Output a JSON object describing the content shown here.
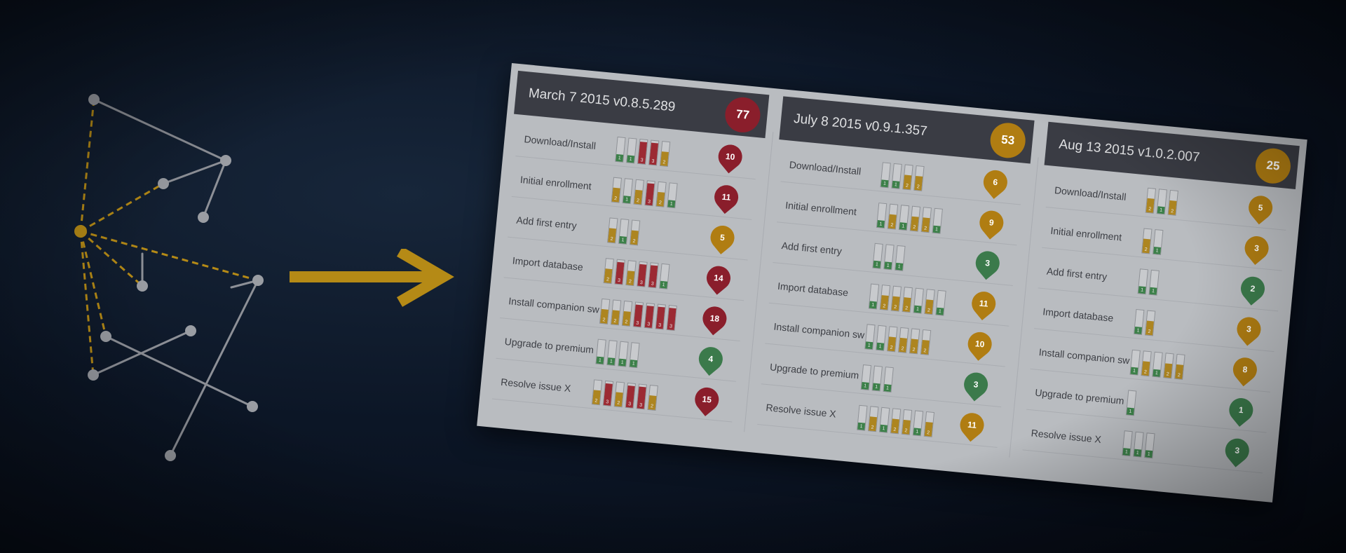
{
  "colors": {
    "gold": "#b58a16",
    "gray_line": "#8d9097",
    "red": "#8a1e2b",
    "green": "#3b7a4b",
    "orange": "#b07d12",
    "bar_red": "#9c2a33",
    "bar_gold": "#ad8520",
    "bar_green": "#3c8049"
  },
  "columns": [
    {
      "title": "March 7 2015 v0.8.5.289",
      "score": 77,
      "score_color": "red",
      "rows": [
        {
          "label": "Download/Install",
          "count": 10,
          "pin_color": "red",
          "bars": [
            {
              "c": "green",
              "v": "1",
              "h": 0.3
            },
            {
              "c": "green",
              "v": "1",
              "h": 0.3
            },
            {
              "c": "red",
              "v": "3",
              "h": 0.9
            },
            {
              "c": "red",
              "v": "3",
              "h": 0.9
            },
            {
              "c": "gold",
              "v": "2",
              "h": 0.6
            }
          ]
        },
        {
          "label": "Initial enrollment",
          "count": 11,
          "pin_color": "red",
          "bars": [
            {
              "c": "gold",
              "v": "2",
              "h": 0.6
            },
            {
              "c": "green",
              "v": "1",
              "h": 0.3
            },
            {
              "c": "gold",
              "v": "2",
              "h": 0.6
            },
            {
              "c": "red",
              "v": "3",
              "h": 0.9
            },
            {
              "c": "gold",
              "v": "2",
              "h": 0.6
            },
            {
              "c": "green",
              "v": "1",
              "h": 0.3
            }
          ]
        },
        {
          "label": "Add first entry",
          "count": 5,
          "pin_color": "orange",
          "bars": [
            {
              "c": "gold",
              "v": "2",
              "h": 0.6
            },
            {
              "c": "green",
              "v": "1",
              "h": 0.3
            },
            {
              "c": "gold",
              "v": "2",
              "h": 0.6
            }
          ]
        },
        {
          "label": "Import database",
          "count": 14,
          "pin_color": "red",
          "bars": [
            {
              "c": "gold",
              "v": "2",
              "h": 0.6
            },
            {
              "c": "red",
              "v": "3",
              "h": 0.9
            },
            {
              "c": "gold",
              "v": "2",
              "h": 0.6
            },
            {
              "c": "red",
              "v": "3",
              "h": 0.9
            },
            {
              "c": "red",
              "v": "3",
              "h": 0.9
            },
            {
              "c": "green",
              "v": "1",
              "h": 0.3
            }
          ]
        },
        {
          "label": "Install companion sw",
          "count": 18,
          "pin_color": "red",
          "bars": [
            {
              "c": "gold",
              "v": "2",
              "h": 0.6
            },
            {
              "c": "gold",
              "v": "2",
              "h": 0.6
            },
            {
              "c": "gold",
              "v": "2",
              "h": 0.6
            },
            {
              "c": "red",
              "v": "3",
              "h": 0.9
            },
            {
              "c": "red",
              "v": "3",
              "h": 0.9
            },
            {
              "c": "red",
              "v": "3",
              "h": 0.9
            },
            {
              "c": "red",
              "v": "3",
              "h": 0.9
            }
          ]
        },
        {
          "label": "Upgrade to premium",
          "count": 4,
          "pin_color": "green",
          "bars": [
            {
              "c": "green",
              "v": "1",
              "h": 0.3
            },
            {
              "c": "green",
              "v": "1",
              "h": 0.3
            },
            {
              "c": "green",
              "v": "1",
              "h": 0.3
            },
            {
              "c": "green",
              "v": "1",
              "h": 0.3
            }
          ]
        },
        {
          "label": "Resolve issue X",
          "count": 15,
          "pin_color": "red",
          "bars": [
            {
              "c": "gold",
              "v": "2",
              "h": 0.6
            },
            {
              "c": "red",
              "v": "3",
              "h": 0.9
            },
            {
              "c": "gold",
              "v": "2",
              "h": 0.6
            },
            {
              "c": "red",
              "v": "3",
              "h": 0.9
            },
            {
              "c": "red",
              "v": "3",
              "h": 0.9
            },
            {
              "c": "gold",
              "v": "2",
              "h": 0.6
            }
          ]
        }
      ]
    },
    {
      "title": "July 8 2015 v0.9.1.357",
      "score": 53,
      "score_color": "orange",
      "rows": [
        {
          "label": "Download/Install",
          "count": 6,
          "pin_color": "orange",
          "bars": [
            {
              "c": "green",
              "v": "1",
              "h": 0.3
            },
            {
              "c": "green",
              "v": "1",
              "h": 0.3
            },
            {
              "c": "gold",
              "v": "2",
              "h": 0.6
            },
            {
              "c": "gold",
              "v": "2",
              "h": 0.6
            }
          ]
        },
        {
          "label": "Initial enrollment",
          "count": 9,
          "pin_color": "orange",
          "bars": [
            {
              "c": "green",
              "v": "1",
              "h": 0.3
            },
            {
              "c": "gold",
              "v": "2",
              "h": 0.6
            },
            {
              "c": "green",
              "v": "1",
              "h": 0.3
            },
            {
              "c": "gold",
              "v": "2",
              "h": 0.6
            },
            {
              "c": "gold",
              "v": "2",
              "h": 0.6
            },
            {
              "c": "green",
              "v": "1",
              "h": 0.3
            }
          ]
        },
        {
          "label": "Add first entry",
          "count": 3,
          "pin_color": "green",
          "bars": [
            {
              "c": "green",
              "v": "1",
              "h": 0.3
            },
            {
              "c": "green",
              "v": "1",
              "h": 0.3
            },
            {
              "c": "green",
              "v": "1",
              "h": 0.3
            }
          ]
        },
        {
          "label": "Import database",
          "count": 11,
          "pin_color": "orange",
          "bars": [
            {
              "c": "green",
              "v": "1",
              "h": 0.3
            },
            {
              "c": "gold",
              "v": "2",
              "h": 0.6
            },
            {
              "c": "gold",
              "v": "2",
              "h": 0.6
            },
            {
              "c": "gold",
              "v": "2",
              "h": 0.6
            },
            {
              "c": "green",
              "v": "1",
              "h": 0.3
            },
            {
              "c": "gold",
              "v": "2",
              "h": 0.6
            },
            {
              "c": "green",
              "v": "1",
              "h": 0.3
            }
          ]
        },
        {
          "label": "Install companion sw",
          "count": 10,
          "pin_color": "orange",
          "bars": [
            {
              "c": "green",
              "v": "1",
              "h": 0.3
            },
            {
              "c": "green",
              "v": "1",
              "h": 0.3
            },
            {
              "c": "gold",
              "v": "2",
              "h": 0.6
            },
            {
              "c": "gold",
              "v": "2",
              "h": 0.6
            },
            {
              "c": "gold",
              "v": "2",
              "h": 0.6
            },
            {
              "c": "gold",
              "v": "2",
              "h": 0.6
            }
          ]
        },
        {
          "label": "Upgrade to premium",
          "count": 3,
          "pin_color": "green",
          "bars": [
            {
              "c": "green",
              "v": "1",
              "h": 0.3
            },
            {
              "c": "green",
              "v": "1",
              "h": 0.3
            },
            {
              "c": "green",
              "v": "1",
              "h": 0.3
            }
          ]
        },
        {
          "label": "Resolve issue X",
          "count": 11,
          "pin_color": "orange",
          "bars": [
            {
              "c": "green",
              "v": "1",
              "h": 0.3
            },
            {
              "c": "gold",
              "v": "2",
              "h": 0.6
            },
            {
              "c": "green",
              "v": "1",
              "h": 0.3
            },
            {
              "c": "gold",
              "v": "2",
              "h": 0.6
            },
            {
              "c": "gold",
              "v": "2",
              "h": 0.6
            },
            {
              "c": "green",
              "v": "1",
              "h": 0.3
            },
            {
              "c": "gold",
              "v": "2",
              "h": 0.6
            }
          ]
        }
      ]
    },
    {
      "title": "Aug 13 2015  v1.0.2.007",
      "score": 25,
      "score_color": "orange",
      "rows": [
        {
          "label": "Download/Install",
          "count": 5,
          "pin_color": "orange",
          "bars": [
            {
              "c": "gold",
              "v": "2",
              "h": 0.6
            },
            {
              "c": "green",
              "v": "1",
              "h": 0.3
            },
            {
              "c": "gold",
              "v": "2",
              "h": 0.6
            }
          ]
        },
        {
          "label": "Initial enrollment",
          "count": 3,
          "pin_color": "orange",
          "bars": [
            {
              "c": "gold",
              "v": "2",
              "h": 0.6
            },
            {
              "c": "green",
              "v": "1",
              "h": 0.3
            }
          ]
        },
        {
          "label": "Add first entry",
          "count": 2,
          "pin_color": "green",
          "bars": [
            {
              "c": "green",
              "v": "1",
              "h": 0.3
            },
            {
              "c": "green",
              "v": "1",
              "h": 0.3
            }
          ]
        },
        {
          "label": "Import database",
          "count": 3,
          "pin_color": "orange",
          "bars": [
            {
              "c": "green",
              "v": "1",
              "h": 0.3
            },
            {
              "c": "gold",
              "v": "2",
              "h": 0.6
            }
          ]
        },
        {
          "label": "Install companion sw",
          "count": 8,
          "pin_color": "orange",
          "bars": [
            {
              "c": "green",
              "v": "1",
              "h": 0.3
            },
            {
              "c": "gold",
              "v": "2",
              "h": 0.6
            },
            {
              "c": "green",
              "v": "1",
              "h": 0.3
            },
            {
              "c": "gold",
              "v": "2",
              "h": 0.6
            },
            {
              "c": "gold",
              "v": "2",
              "h": 0.6
            }
          ]
        },
        {
          "label": "Upgrade to premium",
          "count": 1,
          "pin_color": "green",
          "bars": [
            {
              "c": "green",
              "v": "1",
              "h": 0.3
            }
          ]
        },
        {
          "label": "Resolve issue X",
          "count": 3,
          "pin_color": "green",
          "bars": [
            {
              "c": "green",
              "v": "1",
              "h": 0.3
            },
            {
              "c": "green",
              "v": "1",
              "h": 0.3
            },
            {
              "c": "green",
              "v": "1",
              "h": 0.3
            }
          ]
        }
      ]
    }
  ]
}
